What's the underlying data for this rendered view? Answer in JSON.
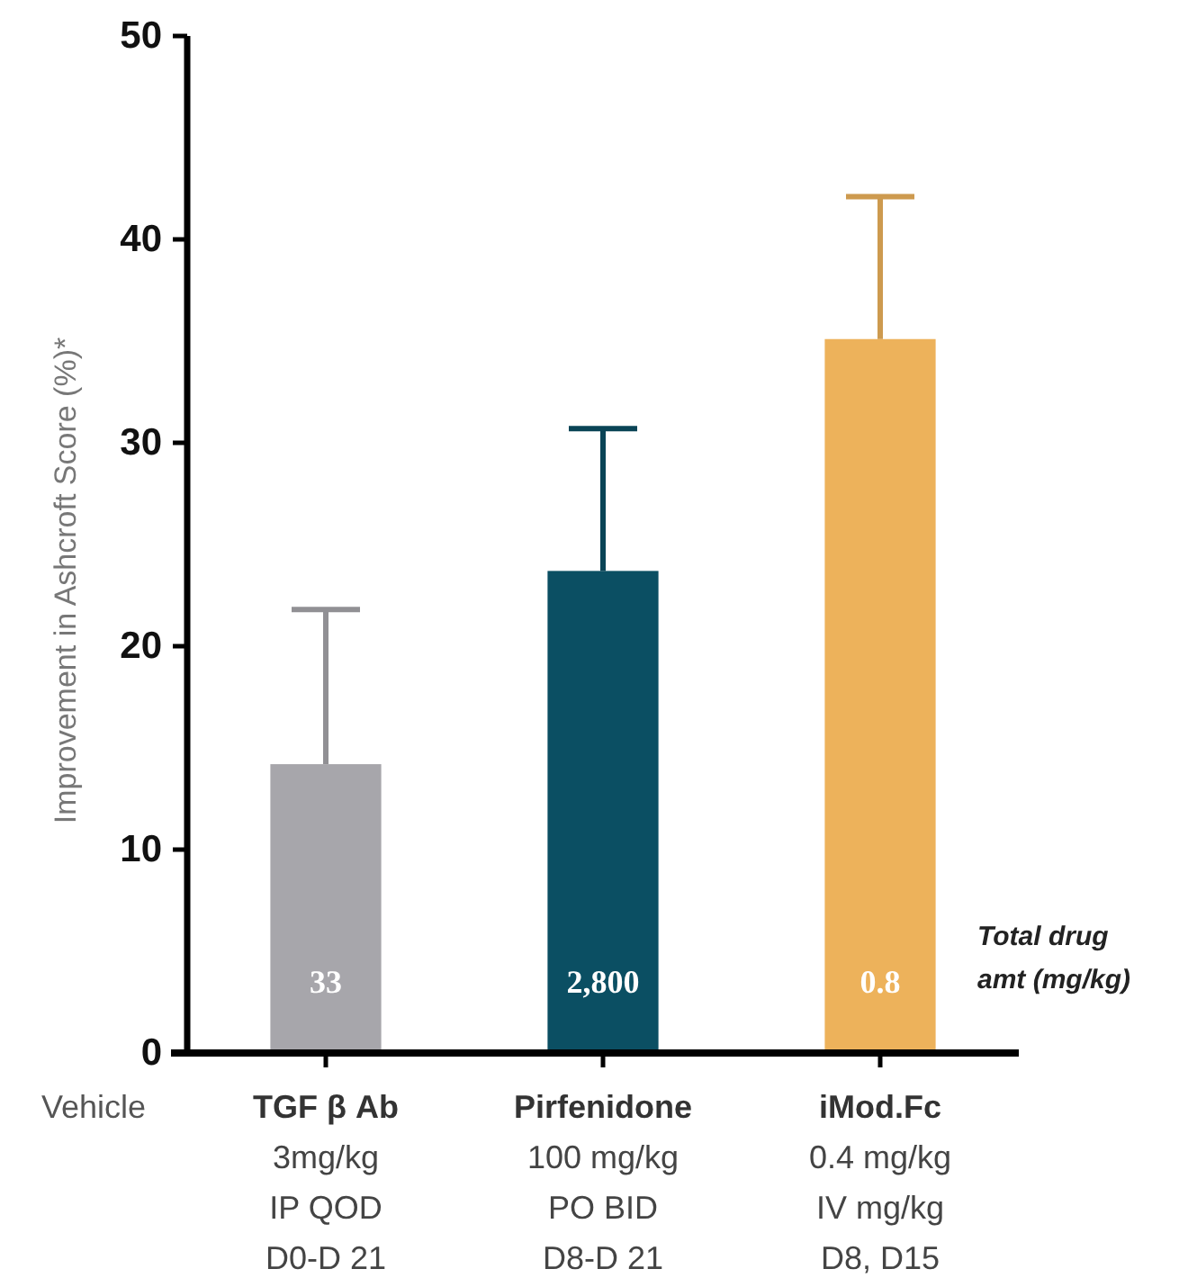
{
  "chart_data": {
    "type": "bar",
    "ylabel": "Improvement in Ashcroft Score (%)*",
    "categories": [
      "TGF β Ab\n3mg/kg\nIP QOD\nD0-D 21",
      "Pirfenidone\n100 mg/kg\nPO BID\nD8-D 21",
      "iMod.Fc\n0.4 mg/kg\nIV mg/kg\nD8, D15"
    ],
    "values": [
      14.2,
      23.7,
      35.1
    ],
    "colors": [
      "#a7a6ab",
      "#0b4f63",
      "#edb25b"
    ],
    "errors": [
      [
        14.2,
        21.8
      ],
      [
        23.7,
        30.7
      ],
      [
        35.1,
        42.1
      ]
    ],
    "ylim": [
      0,
      50
    ],
    "yticks": [
      0,
      10,
      20,
      30,
      40,
      50
    ],
    "annotations": [
      "Vehicle",
      "33",
      "2,800",
      "0.8",
      "Total drug amt (mg/kg)"
    ]
  }
}
